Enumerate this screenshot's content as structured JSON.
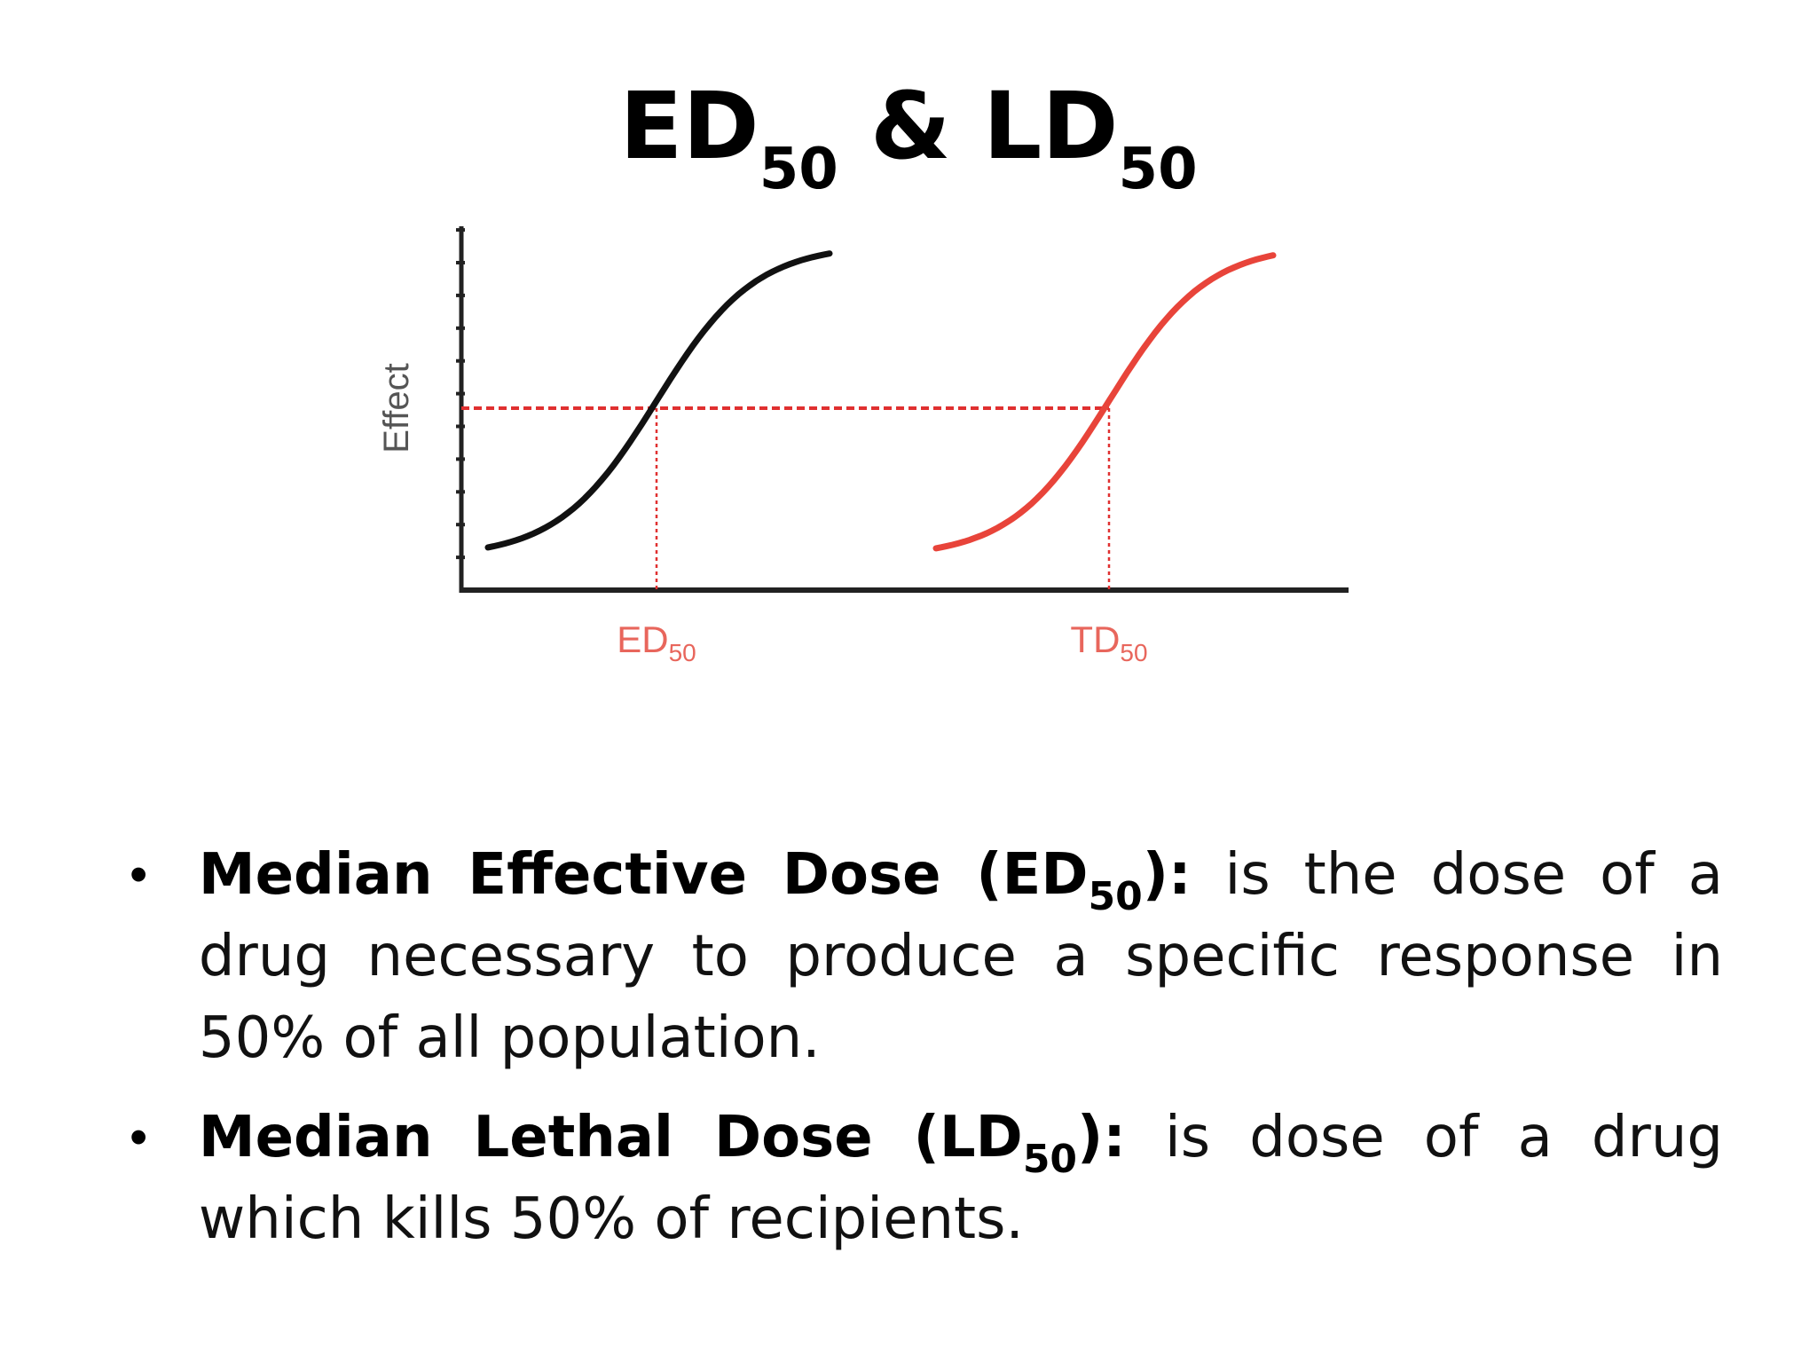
{
  "title": {
    "part1": "ED",
    "sub1": "50",
    "amp": " & ",
    "part2": "LD",
    "sub2": "50"
  },
  "chart_data": {
    "type": "line",
    "ylabel": "Effect",
    "x_tick_labels": [
      {
        "base": "ED",
        "sub": "50",
        "at": 0.22
      },
      {
        "base": "TD",
        "sub": "50",
        "at": 0.73
      }
    ],
    "y_tick_count": 11,
    "series": [
      {
        "id": "effective",
        "color": "#111111",
        "x_mid": 0.22,
        "x_start": 0.03,
        "x_end": 0.415,
        "y_low": 0.09,
        "y_high": 0.95
      },
      {
        "id": "toxic",
        "color": "#e8443a",
        "x_mid": 0.73,
        "x_start": 0.535,
        "x_end": 0.915,
        "y_low": 0.09,
        "y_high": 0.95
      }
    ],
    "reference_level": 0.5,
    "reference_color": "#e03030"
  },
  "bullets": [
    {
      "term": "Median Effective Dose (ED",
      "term_sub": "50",
      "term_end": "):",
      "text": " is the dose of a drug necessary to produce a specific response in 50% of all population."
    },
    {
      "term": "Median Lethal Dose (LD",
      "term_sub": "50",
      "term_end": "):",
      "text": " is dose of a drug which kills 50% of recipients."
    }
  ]
}
